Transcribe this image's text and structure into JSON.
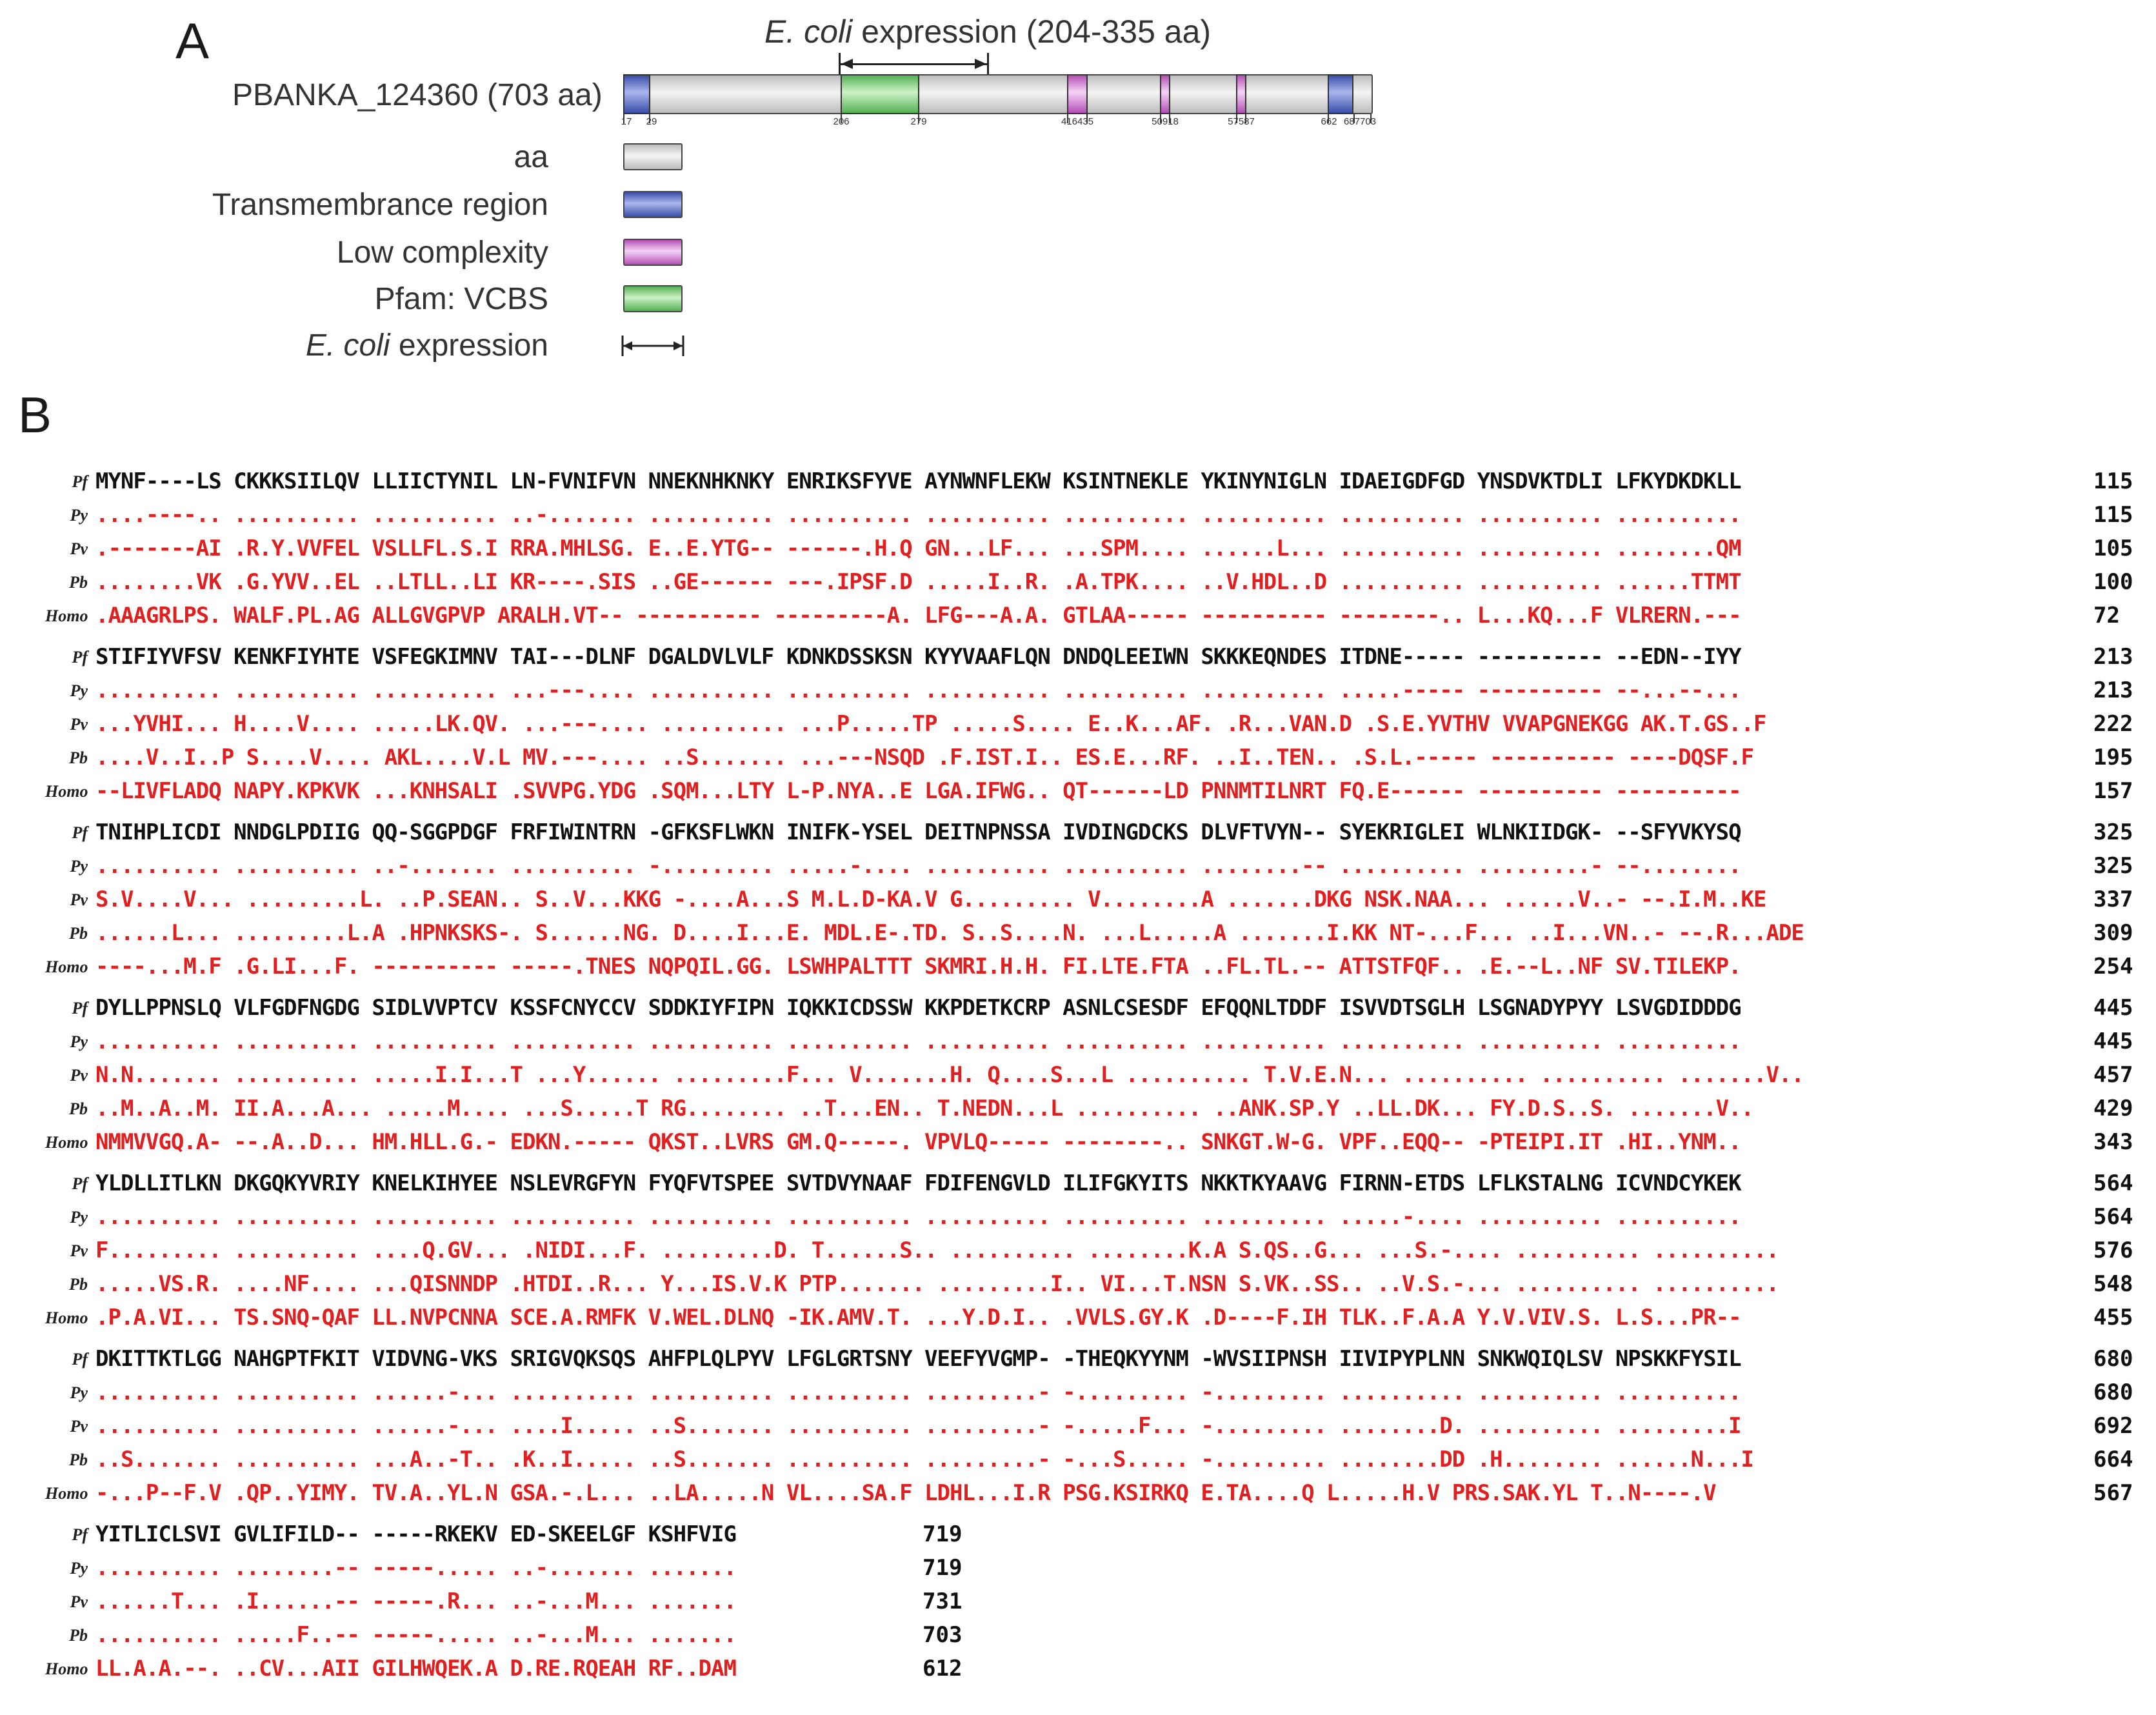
{
  "panel_a": {
    "letter": "A",
    "ecoli_prefix": "E. coli",
    "ecoli_suffix": " expression (204-335 aa)",
    "protein_label": "PBANKA_124360 (703 aa)",
    "ticks": [
      "17",
      "29",
      "206",
      "279",
      "416435",
      "50918",
      "57587",
      "662",
      "687703"
    ],
    "legend": [
      {
        "label": "aa",
        "swatch": "aa"
      },
      {
        "label": "Transmembrance region",
        "swatch": "tm"
      },
      {
        "label": "Low complexity",
        "swatch": "lc"
      },
      {
        "label": "Pfam: VCBS",
        "swatch": "pf"
      },
      {
        "label_italic": "E. coli",
        "label": " expression",
        "swatch": "arrow"
      }
    ],
    "colors": {
      "transmembrane": "#3a4ea8",
      "low_complexity": "#b34fb5",
      "pfam": "#55b155",
      "aa": "#c8c8c8"
    }
  },
  "panel_b": {
    "letter": "B",
    "colors": {
      "conserved": "#111111",
      "variant": "#e02020"
    },
    "blocks": [
      {
        "rows": [
          {
            "species": "Pf",
            "seq": "MYNF----LS CKKKSIILQV LLIICTYNIL LN-FVNIFVN NNEKNHKNKY ENRIKSFYVE AYNWNFLEKW KSINTNEKLE YKINYNIGLN IDAEIGDFGD YNSDVKTDLI LFKYDKDKLL",
            "count": "115"
          },
          {
            "species": "Py",
            "seq": "....----.. .......... .......... ..-....... .......... .......... .......... .......... .......... .......... .......... ..........",
            "count": "115"
          },
          {
            "species": "Pv",
            "seq": ".-------AI .R.Y.VVFEL VSLLFL.S.I RRA.MHLSG. E..E.YTG-- ------.H.Q GN...LF... ...SPM.... ......L... .......... .......... ........QM",
            "count": "105"
          },
          {
            "species": "Pb",
            "seq": "........VK .G.YVV..EL ..LTLL..LI KR----.SIS ..GE------ ---.IPSF.D .....I..R. .A.TPK.... ..V.HDL..D .......... .......... ......TTMT",
            "count": "100"
          },
          {
            "species": "Homo",
            "seq": ".AAAGRLPS. WALF.PL.AG ALLGVGPVP ARALH.VT-- ---------- ---------A. LFG---A.A. GTLAA----- ---------- --------.. L...KQ...F VLRERN.---",
            "count": "72"
          }
        ]
      },
      {
        "rows": [
          {
            "species": "Pf",
            "seq": "STIFIYVFSV KENKFIYHTE VSFEGKIMNV TAI---DLNF DGALDVLVLF KDNKDSSKSN KYYVAAFLQN DNDQLEEIWN SKKKEQNDES ITDNE----- ---------- --EDN--IYY",
            "count": "213"
          },
          {
            "species": "Py",
            "seq": ".......... .......... .......... ...---.... .......... .......... .......... .......... .......... .....----- ---------- --...--...",
            "count": "213"
          },
          {
            "species": "Pv",
            "seq": "...YVHI... H....V.... .....LK.QV. ...---.... .......... ...P.....TP .....S.... E..K...AF. .R...VAN.D .S.E.YVTHV VVAPGNEKGG AK.T.GS..F",
            "count": "222"
          },
          {
            "species": "Pb",
            "seq": "....V..I..P S....V.... AKL....V.L MV.---.... ..S....... ...---NSQD .F.IST.I.. ES.E...RF. ..I..TEN.. .S.L.----- ---------- ----DQSF.F",
            "count": "195"
          },
          {
            "species": "Homo",
            "seq": "--LIVFLADQ NAPY.KPKVK ...KNHSALI .SVVPG.YDG .SQM...LTY L-P.NYA..E LGA.IFWG.. QT------LD PNNMTILNRT FQ.E------ ---------- ----------",
            "count": "157"
          }
        ]
      },
      {
        "rows": [
          {
            "species": "Pf",
            "seq": "TNIHPLICDI NNDGLPDIIG QQ-SGGPDGF FRFIWINTRN -GFKSFLWKN INIFK-YSEL DEITNPNSSA IVDINGDCKS DLVFTVYN-- SYEKRIGLEI WLNKIIDGK- --SFYVKYSQ",
            "count": "325"
          },
          {
            "species": "Py",
            "seq": ".......... .......... ..-....... .......... -......... .....-.... .......... .......... ........-- .......... .........- --........",
            "count": "325"
          },
          {
            "species": "Pv",
            "seq": "S.V....V... .........L. ..P.SEAN.. S..V...KKG -....A...S M.L.D-KA.V G......... V........A .......DKG NSK.NAA... ......V..- --.I.M..KE",
            "count": "337"
          },
          {
            "species": "Pb",
            "seq": "......L... .........L.A .HPNKSKS-. S......NG. D....I...E. MDL.E-.TD. S..S....N. ...L.....A .......I.KK NT-...F... ..I...VN..- --.R...ADE",
            "count": "309"
          },
          {
            "species": "Homo",
            "seq": "----...M.F .G.LI...F. ---------- -----.TNES NQPQIL.GG. LSWHPALTTT SKMRI.H.H. FI.LTE.FTA ..FL.TL.-- ATTSTFQF.. .E.--L..NF SV.TILEKP.",
            "count": "254"
          }
        ]
      },
      {
        "rows": [
          {
            "species": "Pf",
            "seq": "DYLLPPNSLQ VLFGDFNGDG SIDLVVPTCV KSSFCNYCCV SDDKIYFIPN IQKKICDSSW KKPDETKCRP ASNLCSESDF EFQQNLTDDF ISVVDTSGLH LSGNADYPYY LSVGDIDDDG",
            "count": "445"
          },
          {
            "species": "Py",
            "seq": ".......... .......... .......... .......... .......... .......... .......... .......... .......... .......... .......... ..........",
            "count": "445"
          },
          {
            "species": "Pv",
            "seq": "N.N....... .......... .....I.I...T ...Y...... .........F... V.......H. Q....S...L .......... T.V.E.N... .......... .......... .......V..",
            "count": "457"
          },
          {
            "species": "Pb",
            "seq": "..M..A..M. II.A...A... .....M.... ...S.....T RG........ ..T...EN.. T.NEDN...L .......... ..ANK.SP.Y ..LL.DK... FY.D.S..S. .......V..",
            "count": "429"
          },
          {
            "species": "Homo",
            "seq": "NMMVVGQ.A- --.A..D... HM.HLL.G.- EDKN.----- QKST..LVRS GM.Q-----. VPVLQ----- --------.. SNKGT.W-G. VPF..EQQ-- -PTEIPI.IT .HI..YNM..",
            "count": "343"
          }
        ]
      },
      {
        "rows": [
          {
            "species": "Pf",
            "seq": "YLDLLITLKN DKGQKYVRIY KNELKIHYEE NSLEVRGFYN FYQFVTSPEE SVTDVYNAAF FDIFENGVLD ILIFGKYITS NKKTKYAAVG FIRNN-ETDS LFLKSTALNG ICVNDCYKEK",
            "count": "564"
          },
          {
            "species": "Py",
            "seq": ".......... .......... .......... .......... .......... .......... .......... .......... .......... .....-.... .......... ..........",
            "count": "564"
          },
          {
            "species": "Pv",
            "seq": "F......... .......... ....Q.GV... .NIDI...F. .........D. T......S.. .......... ........K.A S.QS..G... ...S.-.... .......... ..........",
            "count": "576"
          },
          {
            "species": "Pb",
            "seq": ".....VS.R. ....NF.... ...QISNNDP .HTDI..R... Y...IS.V.K PTP....... .........I.. VI...T.NSN S.VK..SS.. ..V.S.-... .......... ..........",
            "count": "548"
          },
          {
            "species": "Homo",
            "seq": ".P.A.VI... TS.SNQ-QAF LL.NVPCNNA SCE.A.RMFK V.WEL.DLNQ -IK.AMV.T. ...Y.D.I.. .VVLS.GY.K .D----F.IH TLK..F.A.A Y.V.VIV.S. L.S...PR--",
            "count": "455"
          }
        ]
      },
      {
        "rows": [
          {
            "species": "Pf",
            "seq": "DKITTKTLGG NAHGPTFKIT VIDVNG-VKS SRIGVQKSQS AHFPLQLPYV LFGLGRTSNY VEEFYVGMP- -THEQKYYNM -WVSIIPNSH IIVIPYPLNN SNKWQIQLSV NPSKKFYSIL",
            "count": "680"
          },
          {
            "species": "Py",
            "seq": ".......... .......... ......-... .......... .......... .......... .........- -......... -......... .......... .......... ..........",
            "count": "680"
          },
          {
            "species": "Pv",
            "seq": ".......... .......... ......-... ....I..... ..S....... .......... .........- -.....F... -......... ........D. .......... .........I",
            "count": "692"
          },
          {
            "species": "Pb",
            "seq": "..S....... .......... ...A..-T.. .K..I..... ..S....... .......... .........- -...S..... -......... ........DD .H........ ......N...I",
            "count": "664"
          },
          {
            "species": "Homo",
            "seq": "-...P--F.V .QP..YIMY. TV.A..YL.N GSA.-.L... ..LA.....N VL....SA.F LDHL...I.R PSG.KSIRKQ E.TA....Q L.....H.V PRS.SAK.YL T..N----.V",
            "count": "567"
          }
        ]
      },
      {
        "rows": [
          {
            "species": "Pf",
            "seq": "YITLICLSVI GVLIFILD-- -----RKEKV ED-SKEELGF KSHFVIG",
            "count": "719"
          },
          {
            "species": "Py",
            "seq": ".......... ........-- -----..... ..-....... .......",
            "count": "719"
          },
          {
            "species": "Pv",
            "seq": "......T... .I......-- -----.R... ..-...M... .......",
            "count": "731"
          },
          {
            "species": "Pb",
            "seq": ".......... .....F..-- -----..... ..-...M... .......",
            "count": "703"
          },
          {
            "species": "Homo",
            "seq": "LL.A.A.--. ..CV...AII GILHWQEK.A D.RE.RQEAH RF..DAM",
            "count": "612"
          }
        ]
      }
    ]
  }
}
